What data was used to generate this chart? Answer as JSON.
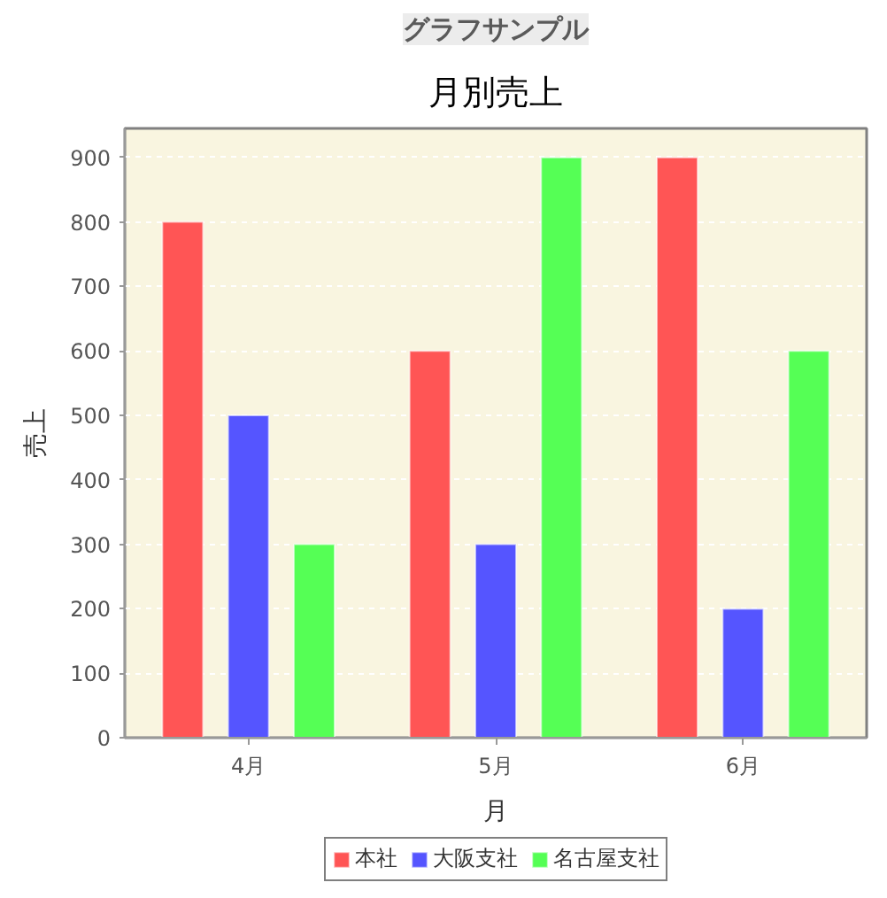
{
  "chart_data": {
    "type": "bar",
    "title": "月別売上",
    "xlabel": "月",
    "ylabel": "売上",
    "categories": [
      "4月",
      "5月",
      "6月"
    ],
    "series": [
      {
        "name": "本社",
        "color": "#ff5555",
        "values": [
          800,
          600,
          900
        ]
      },
      {
        "name": "大阪支社",
        "color": "#5555ff",
        "values": [
          500,
          300,
          200
        ]
      },
      {
        "name": "名古屋支社",
        "color": "#55ff55",
        "values": [
          300,
          900,
          600
        ]
      }
    ],
    "ylim": [
      0,
      945
    ],
    "yticks": [
      0,
      100,
      200,
      300,
      400,
      500,
      600,
      700,
      800,
      900
    ],
    "grid": "y",
    "legend": "bottom",
    "annotations": [
      "グラフサンプル"
    ]
  }
}
